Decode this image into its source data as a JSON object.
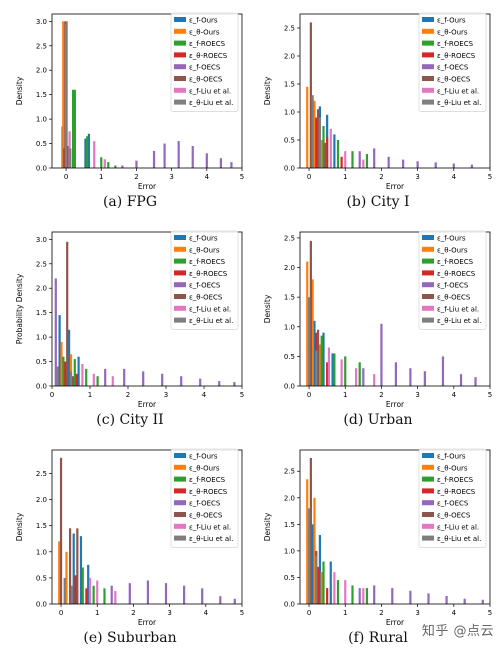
{
  "series_names": [
    "ε_f-Ours",
    "ε_θ-Ours",
    "ε_f-ROECS",
    "ε_θ-ROECS",
    "ε_f-OECS",
    "ε_θ-OECS",
    "ε_f-Liu et al.",
    "ε_θ-Liu et al."
  ],
  "colors": [
    "#1f77b4",
    "#ff7f0e",
    "#2ca02c",
    "#d62728",
    "#9467bd",
    "#8c564b",
    "#e377c2",
    "#7f7f7f"
  ],
  "watermark": "知乎 @点云",
  "chart_data": [
    {
      "type": "bar",
      "caption": "(a)  FPG",
      "xlabel": "Error",
      "ylabel": "Density",
      "xlim": [
        -0.4,
        5.0
      ],
      "ylim": [
        0,
        3.15
      ],
      "xticks": [
        0,
        1,
        2,
        3,
        4,
        5
      ],
      "yticks": [
        0.0,
        0.5,
        1.0,
        1.5,
        2.0,
        2.5,
        3.0
      ],
      "series": [
        {
          "name": "ε_f-Ours",
          "points": [
            [
              -0.1,
              0.85
            ],
            [
              0.55,
              0.6
            ],
            [
              0.65,
              0.7
            ]
          ]
        },
        {
          "name": "ε_θ-Ours",
          "points": [
            [
              -0.08,
              3.0
            ],
            [
              0.02,
              3.0
            ]
          ]
        },
        {
          "name": "ε_f-ROECS",
          "points": [
            [
              0.2,
              1.6
            ],
            [
              0.25,
              1.6
            ],
            [
              0.6,
              0.65
            ],
            [
              1.0,
              0.22
            ],
            [
              1.2,
              0.12
            ],
            [
              1.4,
              0.05
            ]
          ]
        },
        {
          "name": "ε_θ-ROECS",
          "points": [
            [
              -0.05,
              0.4
            ],
            [
              0.1,
              0.15
            ]
          ]
        },
        {
          "name": "ε_f-OECS",
          "points": [
            [
              1.6,
              0.05
            ],
            [
              2.0,
              0.15
            ],
            [
              2.5,
              0.35
            ],
            [
              2.8,
              0.5
            ],
            [
              3.2,
              0.55
            ],
            [
              3.6,
              0.45
            ],
            [
              4.0,
              0.3
            ],
            [
              4.4,
              0.2
            ],
            [
              4.7,
              0.12
            ]
          ]
        },
        {
          "name": "ε_θ-OECS",
          "points": [
            [
              -0.02,
              3.0
            ],
            [
              0.05,
              0.45
            ]
          ]
        },
        {
          "name": "ε_f-Liu et al.",
          "points": [
            [
              0.1,
              0.75
            ],
            [
              0.8,
              0.55
            ],
            [
              1.1,
              0.18
            ]
          ]
        },
        {
          "name": "ε_θ-Liu et al.",
          "points": [
            [
              0.0,
              2.95
            ],
            [
              0.12,
              0.4
            ]
          ]
        }
      ]
    },
    {
      "type": "bar",
      "caption": "(b)  City I",
      "xlabel": "Error",
      "ylabel": "Density",
      "xlim": [
        -0.25,
        5.0
      ],
      "ylim": [
        0,
        2.75
      ],
      "xticks": [
        0,
        1,
        2,
        3,
        4,
        5
      ],
      "yticks": [
        0.0,
        0.5,
        1.0,
        1.5,
        2.0,
        2.5
      ],
      "series": [
        {
          "name": "ε_f-Ours",
          "points": [
            [
              0.1,
              0.8
            ],
            [
              0.3,
              1.1
            ],
            [
              0.5,
              0.95
            ],
            [
              0.7,
              0.6
            ]
          ]
        },
        {
          "name": "ε_θ-Ours",
          "points": [
            [
              -0.05,
              1.45
            ],
            [
              0.15,
              1.2
            ],
            [
              0.35,
              0.5
            ]
          ]
        },
        {
          "name": "ε_f-ROECS",
          "points": [
            [
              0.4,
              0.75
            ],
            [
              0.8,
              0.5
            ],
            [
              1.2,
              0.3
            ],
            [
              1.6,
              0.25
            ]
          ]
        },
        {
          "name": "ε_θ-ROECS",
          "points": [
            [
              0.2,
              0.9
            ],
            [
              0.5,
              0.55
            ],
            [
              0.9,
              0.2
            ]
          ]
        },
        {
          "name": "ε_f-OECS",
          "points": [
            [
              1.4,
              0.3
            ],
            [
              1.8,
              0.35
            ],
            [
              2.2,
              0.2
            ],
            [
              2.6,
              0.15
            ],
            [
              3.0,
              0.12
            ],
            [
              3.5,
              0.1
            ],
            [
              4.0,
              0.08
            ],
            [
              4.5,
              0.06
            ]
          ]
        },
        {
          "name": "ε_θ-OECS",
          "points": [
            [
              0.05,
              2.6
            ],
            [
              0.25,
              1.05
            ],
            [
              0.45,
              0.45
            ]
          ]
        },
        {
          "name": "ε_f-Liu et al.",
          "points": [
            [
              0.6,
              0.7
            ],
            [
              1.0,
              0.3
            ],
            [
              1.5,
              0.15
            ]
          ]
        },
        {
          "name": "ε_θ-Liu et al.",
          "points": [
            [
              0.1,
              1.3
            ],
            [
              0.3,
              0.9
            ]
          ]
        }
      ]
    },
    {
      "type": "bar",
      "caption": "(c)  City II",
      "xlabel": "Error",
      "ylabel": "Probability Density",
      "xlim": [
        0.0,
        5.0
      ],
      "ylim": [
        0,
        3.15
      ],
      "xticks": [
        0,
        1,
        2,
        3,
        4,
        5
      ],
      "yticks": [
        0.0,
        0.5,
        1.0,
        1.5,
        2.0,
        2.5,
        3.0
      ],
      "series": [
        {
          "name": "ε_f-Ours",
          "points": [
            [
              0.2,
              1.45
            ],
            [
              0.45,
              1.15
            ],
            [
              0.7,
              0.6
            ]
          ]
        },
        {
          "name": "ε_θ-Ours",
          "points": [
            [
              0.25,
              0.9
            ],
            [
              0.5,
              0.65
            ]
          ]
        },
        {
          "name": "ε_f-ROECS",
          "points": [
            [
              0.3,
              0.6
            ],
            [
              0.6,
              0.55
            ],
            [
              0.9,
              0.35
            ],
            [
              1.2,
              0.2
            ]
          ]
        },
        {
          "name": "ε_θ-ROECS",
          "points": [
            [
              0.35,
              0.5
            ],
            [
              0.65,
              0.25
            ]
          ]
        },
        {
          "name": "ε_f-OECS",
          "points": [
            [
              0.1,
              2.2
            ],
            [
              1.4,
              0.35
            ],
            [
              1.9,
              0.35
            ],
            [
              2.4,
              0.3
            ],
            [
              2.9,
              0.25
            ],
            [
              3.4,
              0.2
            ],
            [
              3.9,
              0.15
            ],
            [
              4.4,
              0.1
            ],
            [
              4.8,
              0.08
            ]
          ]
        },
        {
          "name": "ε_θ-OECS",
          "points": [
            [
              0.4,
              2.95
            ],
            [
              0.55,
              0.2
            ]
          ]
        },
        {
          "name": "ε_f-Liu et al.",
          "points": [
            [
              0.8,
              0.45
            ],
            [
              1.1,
              0.25
            ],
            [
              1.6,
              0.2
            ]
          ]
        },
        {
          "name": "ε_θ-Liu et al.",
          "points": [
            [
              0.15,
              0.4
            ],
            [
              0.5,
              0.3
            ]
          ]
        }
      ]
    },
    {
      "type": "bar",
      "caption": "(d)  Urban",
      "xlabel": "Error",
      "ylabel": "Density",
      "xlim": [
        -0.25,
        5.0
      ],
      "ylim": [
        0,
        2.6
      ],
      "xticks": [
        0,
        1,
        2,
        3,
        4,
        5
      ],
      "yticks": [
        0.0,
        0.5,
        1.0,
        1.5,
        2.0,
        2.5
      ],
      "series": [
        {
          "name": "ε_f-Ours",
          "points": [
            [
              0.15,
              1.1
            ],
            [
              0.4,
              0.9
            ],
            [
              0.65,
              0.55
            ]
          ]
        },
        {
          "name": "ε_θ-Ours",
          "points": [
            [
              -0.05,
              2.1
            ],
            [
              0.1,
              1.8
            ],
            [
              0.3,
              0.7
            ]
          ]
        },
        {
          "name": "ε_f-ROECS",
          "points": [
            [
              0.35,
              0.85
            ],
            [
              0.7,
              0.55
            ],
            [
              1.0,
              0.5
            ],
            [
              1.4,
              0.4
            ]
          ]
        },
        {
          "name": "ε_θ-ROECS",
          "points": [
            [
              0.2,
              0.9
            ],
            [
              0.5,
              0.4
            ]
          ]
        },
        {
          "name": "ε_f-OECS",
          "points": [
            [
              1.5,
              0.3
            ],
            [
              2.0,
              1.05
            ],
            [
              2.4,
              0.4
            ],
            [
              2.8,
              0.3
            ],
            [
              3.2,
              0.25
            ],
            [
              3.7,
              0.5
            ],
            [
              4.2,
              0.2
            ],
            [
              4.6,
              0.15
            ]
          ]
        },
        {
          "name": "ε_θ-OECS",
          "points": [
            [
              0.05,
              2.45
            ],
            [
              0.25,
              0.95
            ]
          ]
        },
        {
          "name": "ε_f-Liu et al.",
          "points": [
            [
              0.55,
              0.65
            ],
            [
              0.9,
              0.45
            ],
            [
              1.3,
              0.3
            ],
            [
              1.8,
              0.2
            ]
          ]
        },
        {
          "name": "ε_θ-Liu et al.",
          "points": [
            [
              0.0,
              1.5
            ],
            [
              0.2,
              0.6
            ]
          ]
        }
      ]
    },
    {
      "type": "bar",
      "caption": "(e)  Suburban",
      "xlabel": "Error",
      "ylabel": "Density",
      "xlim": [
        -0.25,
        5.0
      ],
      "ylim": [
        0,
        2.95
      ],
      "xticks": [
        0,
        1,
        2,
        3,
        4,
        5
      ],
      "yticks": [
        0.0,
        0.5,
        1.0,
        1.5,
        2.0,
        2.5
      ],
      "series": [
        {
          "name": "ε_f-Ours",
          "points": [
            [
              0.35,
              1.35
            ],
            [
              0.55,
              1.3
            ],
            [
              0.75,
              0.75
            ]
          ]
        },
        {
          "name": "ε_θ-Ours",
          "points": [
            [
              -0.05,
              1.2
            ],
            [
              0.15,
              1.0
            ]
          ]
        },
        {
          "name": "ε_f-ROECS",
          "points": [
            [
              0.6,
              0.7
            ],
            [
              0.9,
              0.35
            ],
            [
              1.2,
              0.3
            ]
          ]
        },
        {
          "name": "ε_θ-ROECS",
          "points": [
            [
              0.4,
              0.55
            ],
            [
              0.7,
              0.3
            ]
          ]
        },
        {
          "name": "ε_f-OECS",
          "points": [
            [
              1.4,
              0.35
            ],
            [
              1.9,
              0.4
            ],
            [
              2.4,
              0.45
            ],
            [
              2.9,
              0.4
            ],
            [
              3.4,
              0.35
            ],
            [
              3.9,
              0.3
            ],
            [
              4.4,
              0.15
            ],
            [
              4.8,
              0.1
            ]
          ]
        },
        {
          "name": "ε_θ-OECS",
          "points": [
            [
              0.0,
              2.8
            ],
            [
              0.25,
              1.45
            ],
            [
              0.45,
              1.45
            ]
          ]
        },
        {
          "name": "ε_f-Liu et al.",
          "points": [
            [
              0.8,
              0.5
            ],
            [
              1.0,
              0.45
            ],
            [
              1.5,
              0.25
            ]
          ]
        },
        {
          "name": "ε_θ-Liu et al.",
          "points": [
            [
              0.1,
              0.5
            ],
            [
              0.3,
              0.35
            ]
          ]
        }
      ]
    },
    {
      "type": "bar",
      "caption": "(f)  Rural",
      "xlabel": "Error",
      "ylabel": "Density",
      "xlim": [
        -0.25,
        5.0
      ],
      "ylim": [
        0,
        2.9
      ],
      "xticks": [
        0,
        1,
        2,
        3,
        4,
        5
      ],
      "yticks": [
        0.0,
        0.5,
        1.0,
        1.5,
        2.0,
        2.5
      ],
      "series": [
        {
          "name": "ε_f-Ours",
          "points": [
            [
              0.1,
              1.5
            ],
            [
              0.3,
              1.3
            ],
            [
              0.6,
              0.8
            ]
          ]
        },
        {
          "name": "ε_θ-Ours",
          "points": [
            [
              -0.05,
              2.35
            ],
            [
              0.15,
              2.0
            ],
            [
              0.35,
              0.6
            ]
          ]
        },
        {
          "name": "ε_f-ROECS",
          "points": [
            [
              0.4,
              0.8
            ],
            [
              0.8,
              0.45
            ],
            [
              1.2,
              0.35
            ],
            [
              1.6,
              0.3
            ]
          ]
        },
        {
          "name": "ε_θ-ROECS",
          "points": [
            [
              0.25,
              0.7
            ],
            [
              0.5,
              0.3
            ]
          ]
        },
        {
          "name": "ε_f-OECS",
          "points": [
            [
              1.4,
              0.3
            ],
            [
              1.8,
              0.35
            ],
            [
              2.3,
              0.3
            ],
            [
              2.8,
              0.25
            ],
            [
              3.3,
              0.2
            ],
            [
              3.8,
              0.15
            ],
            [
              4.3,
              0.1
            ],
            [
              4.8,
              0.08
            ]
          ]
        },
        {
          "name": "ε_θ-OECS",
          "points": [
            [
              0.05,
              2.75
            ],
            [
              0.2,
              1.0
            ]
          ]
        },
        {
          "name": "ε_f-Liu et al.",
          "points": [
            [
              0.7,
              0.6
            ],
            [
              1.0,
              0.45
            ],
            [
              1.5,
              0.3
            ]
          ]
        },
        {
          "name": "ε_θ-Liu et al.",
          "points": [
            [
              0.0,
              1.8
            ],
            [
              0.2,
              0.9
            ]
          ]
        }
      ]
    }
  ]
}
